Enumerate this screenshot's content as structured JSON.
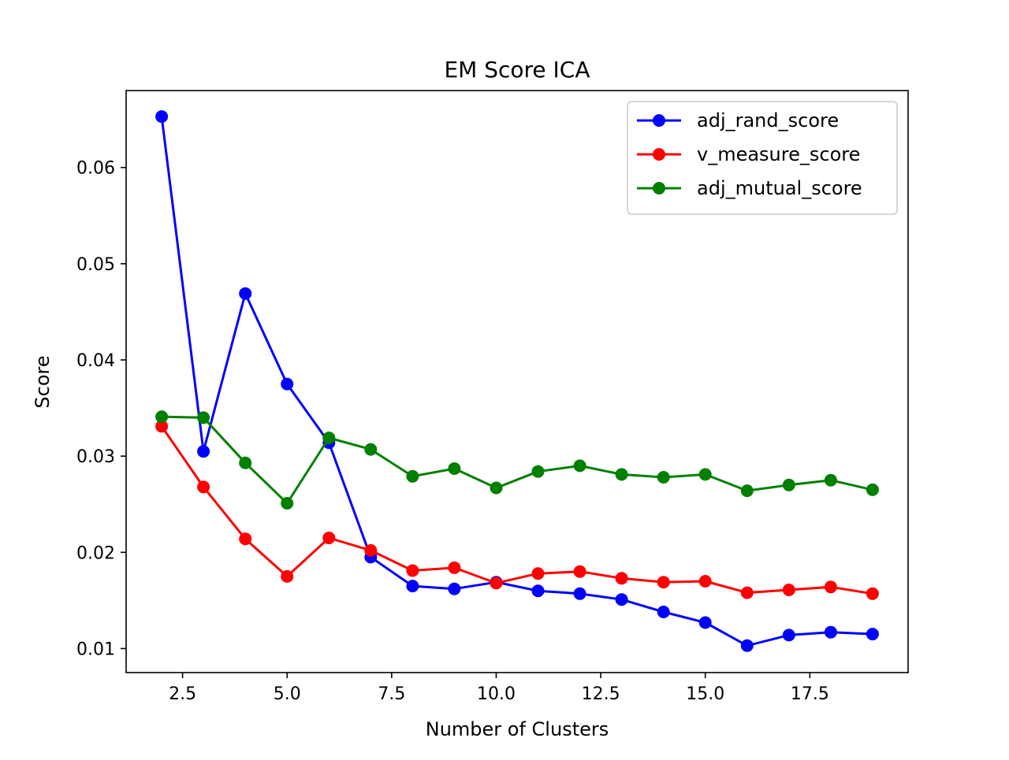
{
  "chart_data": {
    "type": "line",
    "title": "EM Score ICA",
    "xlabel": "Number of Clusters",
    "ylabel": "Score",
    "xlim": [
      1.15,
      19.85
    ],
    "ylim": [
      0.0075,
      0.068
    ],
    "x_ticks": [
      "2.5",
      "5.0",
      "7.5",
      "10.0",
      "12.5",
      "15.0",
      "17.5"
    ],
    "y_ticks": [
      "0.01",
      "0.02",
      "0.03",
      "0.04",
      "0.05",
      "0.06"
    ],
    "grid": false,
    "legend_position": "top-right",
    "x": [
      2,
      3,
      4,
      5,
      6,
      7,
      8,
      9,
      10,
      11,
      12,
      13,
      14,
      15,
      16,
      17,
      18,
      19
    ],
    "series": [
      {
        "name": "adj_rand_score",
        "color": "#0000ff",
        "marker": "circle",
        "values": [
          0.0653,
          0.0305,
          0.0469,
          0.0375,
          0.0314,
          0.0195,
          0.0165,
          0.0162,
          0.0169,
          0.016,
          0.0157,
          0.0151,
          0.0138,
          0.0127,
          0.0103,
          0.0114,
          0.0117,
          0.0115
        ]
      },
      {
        "name": "v_measure_score",
        "color": "#ff0000",
        "marker": "circle",
        "values": [
          0.0331,
          0.0268,
          0.0214,
          0.0175,
          0.0215,
          0.0202,
          0.0181,
          0.0184,
          0.0168,
          0.0178,
          0.018,
          0.0173,
          0.0169,
          0.017,
          0.0158,
          0.0161,
          0.0164,
          0.0157
        ]
      },
      {
        "name": "adj_mutual_score",
        "color": "#008000",
        "marker": "circle",
        "values": [
          0.0341,
          0.034,
          0.0293,
          0.0251,
          0.0319,
          0.0307,
          0.0279,
          0.0287,
          0.0267,
          0.0284,
          0.029,
          0.0281,
          0.0278,
          0.0281,
          0.0264,
          0.027,
          0.0275,
          0.0265
        ]
      }
    ]
  }
}
